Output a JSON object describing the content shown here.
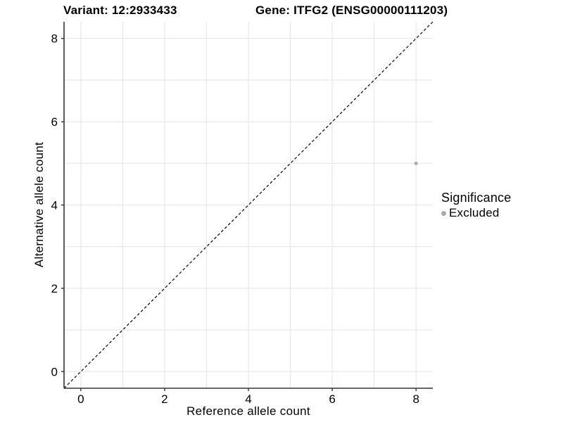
{
  "titles": {
    "variant": "Variant: 12:2933433",
    "gene": "Gene: ITFG2 (ENSG00000111203)"
  },
  "legend": {
    "title": "Significance",
    "items": [
      {
        "label": "Excluded",
        "marker": "circle-icon",
        "color": "#aaaaaa"
      }
    ]
  },
  "colors": {
    "point": "#aaaaaa",
    "grid": "#e4e4e4",
    "axis": "#333333",
    "tick": "#333333",
    "text": "#000000",
    "reference_line": "#000000",
    "background": "#ffffff"
  },
  "chart_data": {
    "type": "scatter",
    "title": "Variant: 12:2933433 | Gene: ITFG2 (ENSG00000111203)",
    "xlabel": "Reference allele count",
    "ylabel": "Alternative allele count",
    "xlim": [
      -0.4,
      8.4
    ],
    "ylim": [
      -0.4,
      8.4
    ],
    "x_ticks": [
      0,
      2,
      4,
      6,
      8
    ],
    "y_ticks": [
      0,
      2,
      4,
      6,
      8
    ],
    "grid": {
      "x": [
        0,
        1,
        2,
        3,
        4,
        5,
        6,
        7,
        8
      ],
      "y": [
        0,
        1,
        2,
        3,
        4,
        5,
        6,
        7,
        8
      ]
    },
    "series": [
      {
        "name": "Excluded",
        "color": "#aaaaaa",
        "points": [
          {
            "x": 8,
            "y": 5
          }
        ]
      }
    ],
    "reference_line": {
      "kind": "identity",
      "equation": "y = x",
      "style": "dashed",
      "color": "#000000"
    },
    "legend_position": "right-middle"
  }
}
